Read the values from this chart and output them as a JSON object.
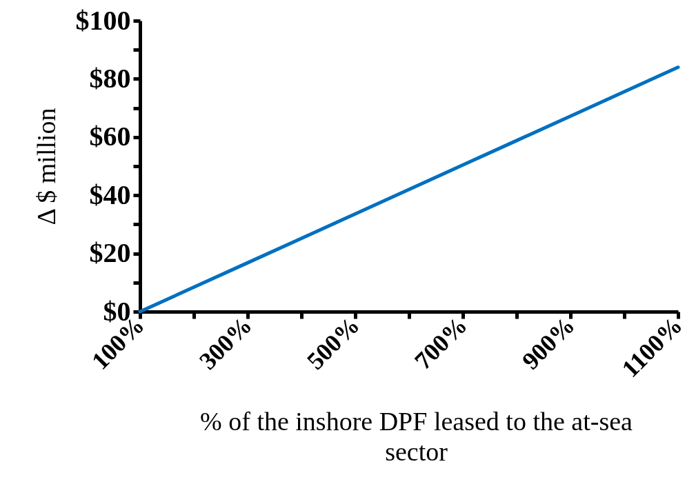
{
  "chart_data": {
    "type": "line",
    "xlabel": "% of the inshore DPF leased to the at-sea sector",
    "ylabel": "Δ $ million",
    "x": [
      100,
      200,
      300,
      400,
      500,
      600,
      700,
      800,
      900,
      1000,
      1100
    ],
    "series": [
      {
        "color": "#0070c0",
        "values": [
          0,
          8.4,
          16.8,
          25.2,
          33.6,
          42,
          50.4,
          58.8,
          67.2,
          75.6,
          84
        ]
      }
    ],
    "xlim": [
      100,
      1100
    ],
    "xticks": [
      {
        "value": 100,
        "label": "100%"
      },
      {
        "value": 200,
        "label": null
      },
      {
        "value": 300,
        "label": "300%"
      },
      {
        "value": 400,
        "label": null
      },
      {
        "value": 500,
        "label": "500%"
      },
      {
        "value": 600,
        "label": null
      },
      {
        "value": 700,
        "label": "700%"
      },
      {
        "value": 800,
        "label": null
      },
      {
        "value": 900,
        "label": "900%"
      },
      {
        "value": 1000,
        "label": null
      },
      {
        "value": 1100,
        "label": "1100%"
      }
    ],
    "ylim": [
      0,
      100
    ],
    "yticks": [
      {
        "value": 0,
        "label": "$0"
      },
      {
        "value": 10,
        "label": null
      },
      {
        "value": 20,
        "label": "$20"
      },
      {
        "value": 30,
        "label": null
      },
      {
        "value": 40,
        "label": "$40"
      },
      {
        "value": 50,
        "label": null
      },
      {
        "value": 60,
        "label": "$60"
      },
      {
        "value": 70,
        "label": null
      },
      {
        "value": 80,
        "label": "$80"
      },
      {
        "value": 90,
        "label": null
      },
      {
        "value": 100,
        "label": "$100"
      }
    ],
    "grid": false,
    "marker": "none",
    "line_style": "solid"
  }
}
